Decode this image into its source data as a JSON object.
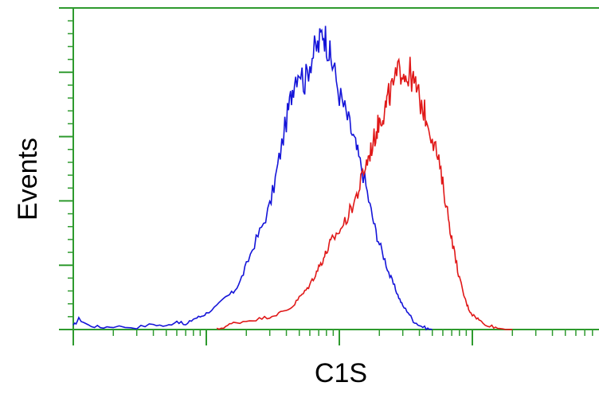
{
  "chart_data": {
    "type": "line",
    "title": "",
    "xlabel": "C1S",
    "ylabel": "Events",
    "x_scale": "log",
    "xlim": [
      1,
      10000
    ],
    "ylim": [
      0,
      300
    ],
    "grid": false,
    "legend": "none",
    "colors": {
      "axis": "#2e9a2e",
      "series": [
        "#1414d8",
        "#e01818"
      ]
    },
    "series": [
      {
        "color": "#1414d8",
        "points": [
          [
            1,
            3
          ],
          [
            1.1,
            10
          ],
          [
            1.3,
            4
          ],
          [
            1.6,
            2
          ],
          [
            2,
            3
          ],
          [
            3,
            2
          ],
          [
            4,
            5
          ],
          [
            5,
            3
          ],
          [
            6,
            8
          ],
          [
            7,
            4
          ],
          [
            8,
            10
          ],
          [
            9,
            12
          ],
          [
            10,
            15
          ],
          [
            12,
            22
          ],
          [
            14,
            30
          ],
          [
            16,
            35
          ],
          [
            18,
            45
          ],
          [
            20,
            60
          ],
          [
            23,
            80
          ],
          [
            26,
            95
          ],
          [
            30,
            115
          ],
          [
            33,
            140
          ],
          [
            36,
            165
          ],
          [
            40,
            195
          ],
          [
            43,
            215
          ],
          [
            46,
            235
          ],
          [
            50,
            245
          ],
          [
            55,
            230
          ],
          [
            60,
            250
          ],
          [
            65,
            260
          ],
          [
            70,
            265
          ],
          [
            75,
            280
          ],
          [
            80,
            270
          ],
          [
            85,
            255
          ],
          [
            90,
            245
          ],
          [
            100,
            220
          ],
          [
            110,
            205
          ],
          [
            120,
            190
          ],
          [
            130,
            175
          ],
          [
            140,
            160
          ],
          [
            155,
            140
          ],
          [
            170,
            115
          ],
          [
            185,
            95
          ],
          [
            200,
            80
          ],
          [
            220,
            65
          ],
          [
            240,
            50
          ],
          [
            260,
            40
          ],
          [
            280,
            30
          ],
          [
            300,
            22
          ],
          [
            330,
            16
          ],
          [
            360,
            8
          ],
          [
            400,
            4
          ],
          [
            450,
            1
          ],
          [
            500,
            0
          ]
        ]
      },
      {
        "color": "#e01818",
        "points": [
          [
            12,
            0
          ],
          [
            14,
            3
          ],
          [
            16,
            6
          ],
          [
            20,
            8
          ],
          [
            25,
            10
          ],
          [
            30,
            12
          ],
          [
            35,
            15
          ],
          [
            40,
            18
          ],
          [
            45,
            22
          ],
          [
            50,
            30
          ],
          [
            55,
            35
          ],
          [
            60,
            42
          ],
          [
            65,
            50
          ],
          [
            70,
            58
          ],
          [
            75,
            65
          ],
          [
            80,
            72
          ],
          [
            85,
            80
          ],
          [
            90,
            85
          ],
          [
            100,
            92
          ],
          [
            110,
            100
          ],
          [
            120,
            110
          ],
          [
            130,
            120
          ],
          [
            140,
            130
          ],
          [
            150,
            145
          ],
          [
            160,
            155
          ],
          [
            170,
            165
          ],
          [
            180,
            175
          ],
          [
            190,
            185
          ],
          [
            200,
            195
          ],
          [
            210,
            200
          ],
          [
            220,
            205
          ],
          [
            230,
            215
          ],
          [
            240,
            220
          ],
          [
            260,
            230
          ],
          [
            280,
            240
          ],
          [
            300,
            245
          ],
          [
            320,
            235
          ],
          [
            340,
            240
          ],
          [
            360,
            230
          ],
          [
            380,
            225
          ],
          [
            400,
            215
          ],
          [
            430,
            205
          ],
          [
            460,
            195
          ],
          [
            500,
            180
          ],
          [
            540,
            165
          ],
          [
            580,
            145
          ],
          [
            620,
            125
          ],
          [
            660,
            105
          ],
          [
            700,
            85
          ],
          [
            750,
            65
          ],
          [
            800,
            48
          ],
          [
            850,
            35
          ],
          [
            900,
            25
          ],
          [
            950,
            18
          ],
          [
            1000,
            14
          ],
          [
            1100,
            10
          ],
          [
            1200,
            6
          ],
          [
            1400,
            3
          ],
          [
            1600,
            1
          ],
          [
            2000,
            0
          ]
        ]
      }
    ]
  }
}
